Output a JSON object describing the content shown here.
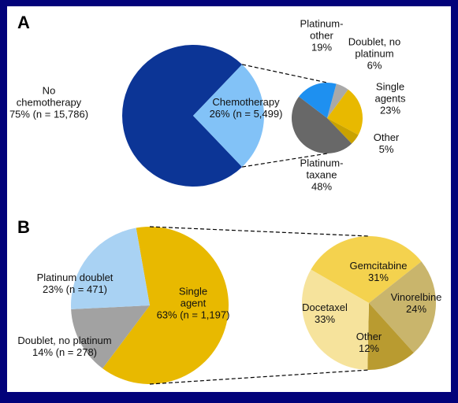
{
  "chart_data": [
    {
      "type": "pie",
      "panel": "A",
      "categories": [
        "No chemotherapy",
        "Chemotherapy"
      ],
      "values": [
        75,
        26
      ],
      "value_labels": [
        "75% (n = 15,786)",
        "26% (n = 5,499)"
      ],
      "colors": [
        "#0c3596",
        "#82c2f7"
      ],
      "breakout": {
        "categories": [
          "Doublet, no platinum",
          "Single agents",
          "Other",
          "Platinum-taxane",
          "Platinum-other"
        ],
        "values": [
          6,
          23,
          5,
          48,
          19
        ],
        "value_labels": [
          "6%",
          "23%",
          "5%",
          "48%",
          "19%"
        ],
        "colors": [
          "#a9a9a9",
          "#e8b900",
          "#c9a200",
          "#686868",
          "#1e90f0"
        ]
      }
    },
    {
      "type": "pie",
      "panel": "B",
      "categories": [
        "Single agent",
        "Doublet, no platinum",
        "Platinum doublet"
      ],
      "values": [
        63,
        14,
        23
      ],
      "value_labels": [
        "63% (n = 1,197)",
        "14% (n = 278)",
        "23% (n = 471)"
      ],
      "colors": [
        "#e8b900",
        "#a2a2a2",
        "#a9d2f3"
      ],
      "breakout": {
        "categories": [
          "Gemcitabine",
          "Vinorelbine",
          "Other",
          "Docetaxel"
        ],
        "values": [
          31,
          24,
          12,
          33
        ],
        "value_labels": [
          "31%",
          "24%",
          "12%",
          "33%"
        ],
        "colors": [
          "#f4d24e",
          "#c9b56c",
          "#b99b30",
          "#f6e39c"
        ]
      }
    }
  ]
}
